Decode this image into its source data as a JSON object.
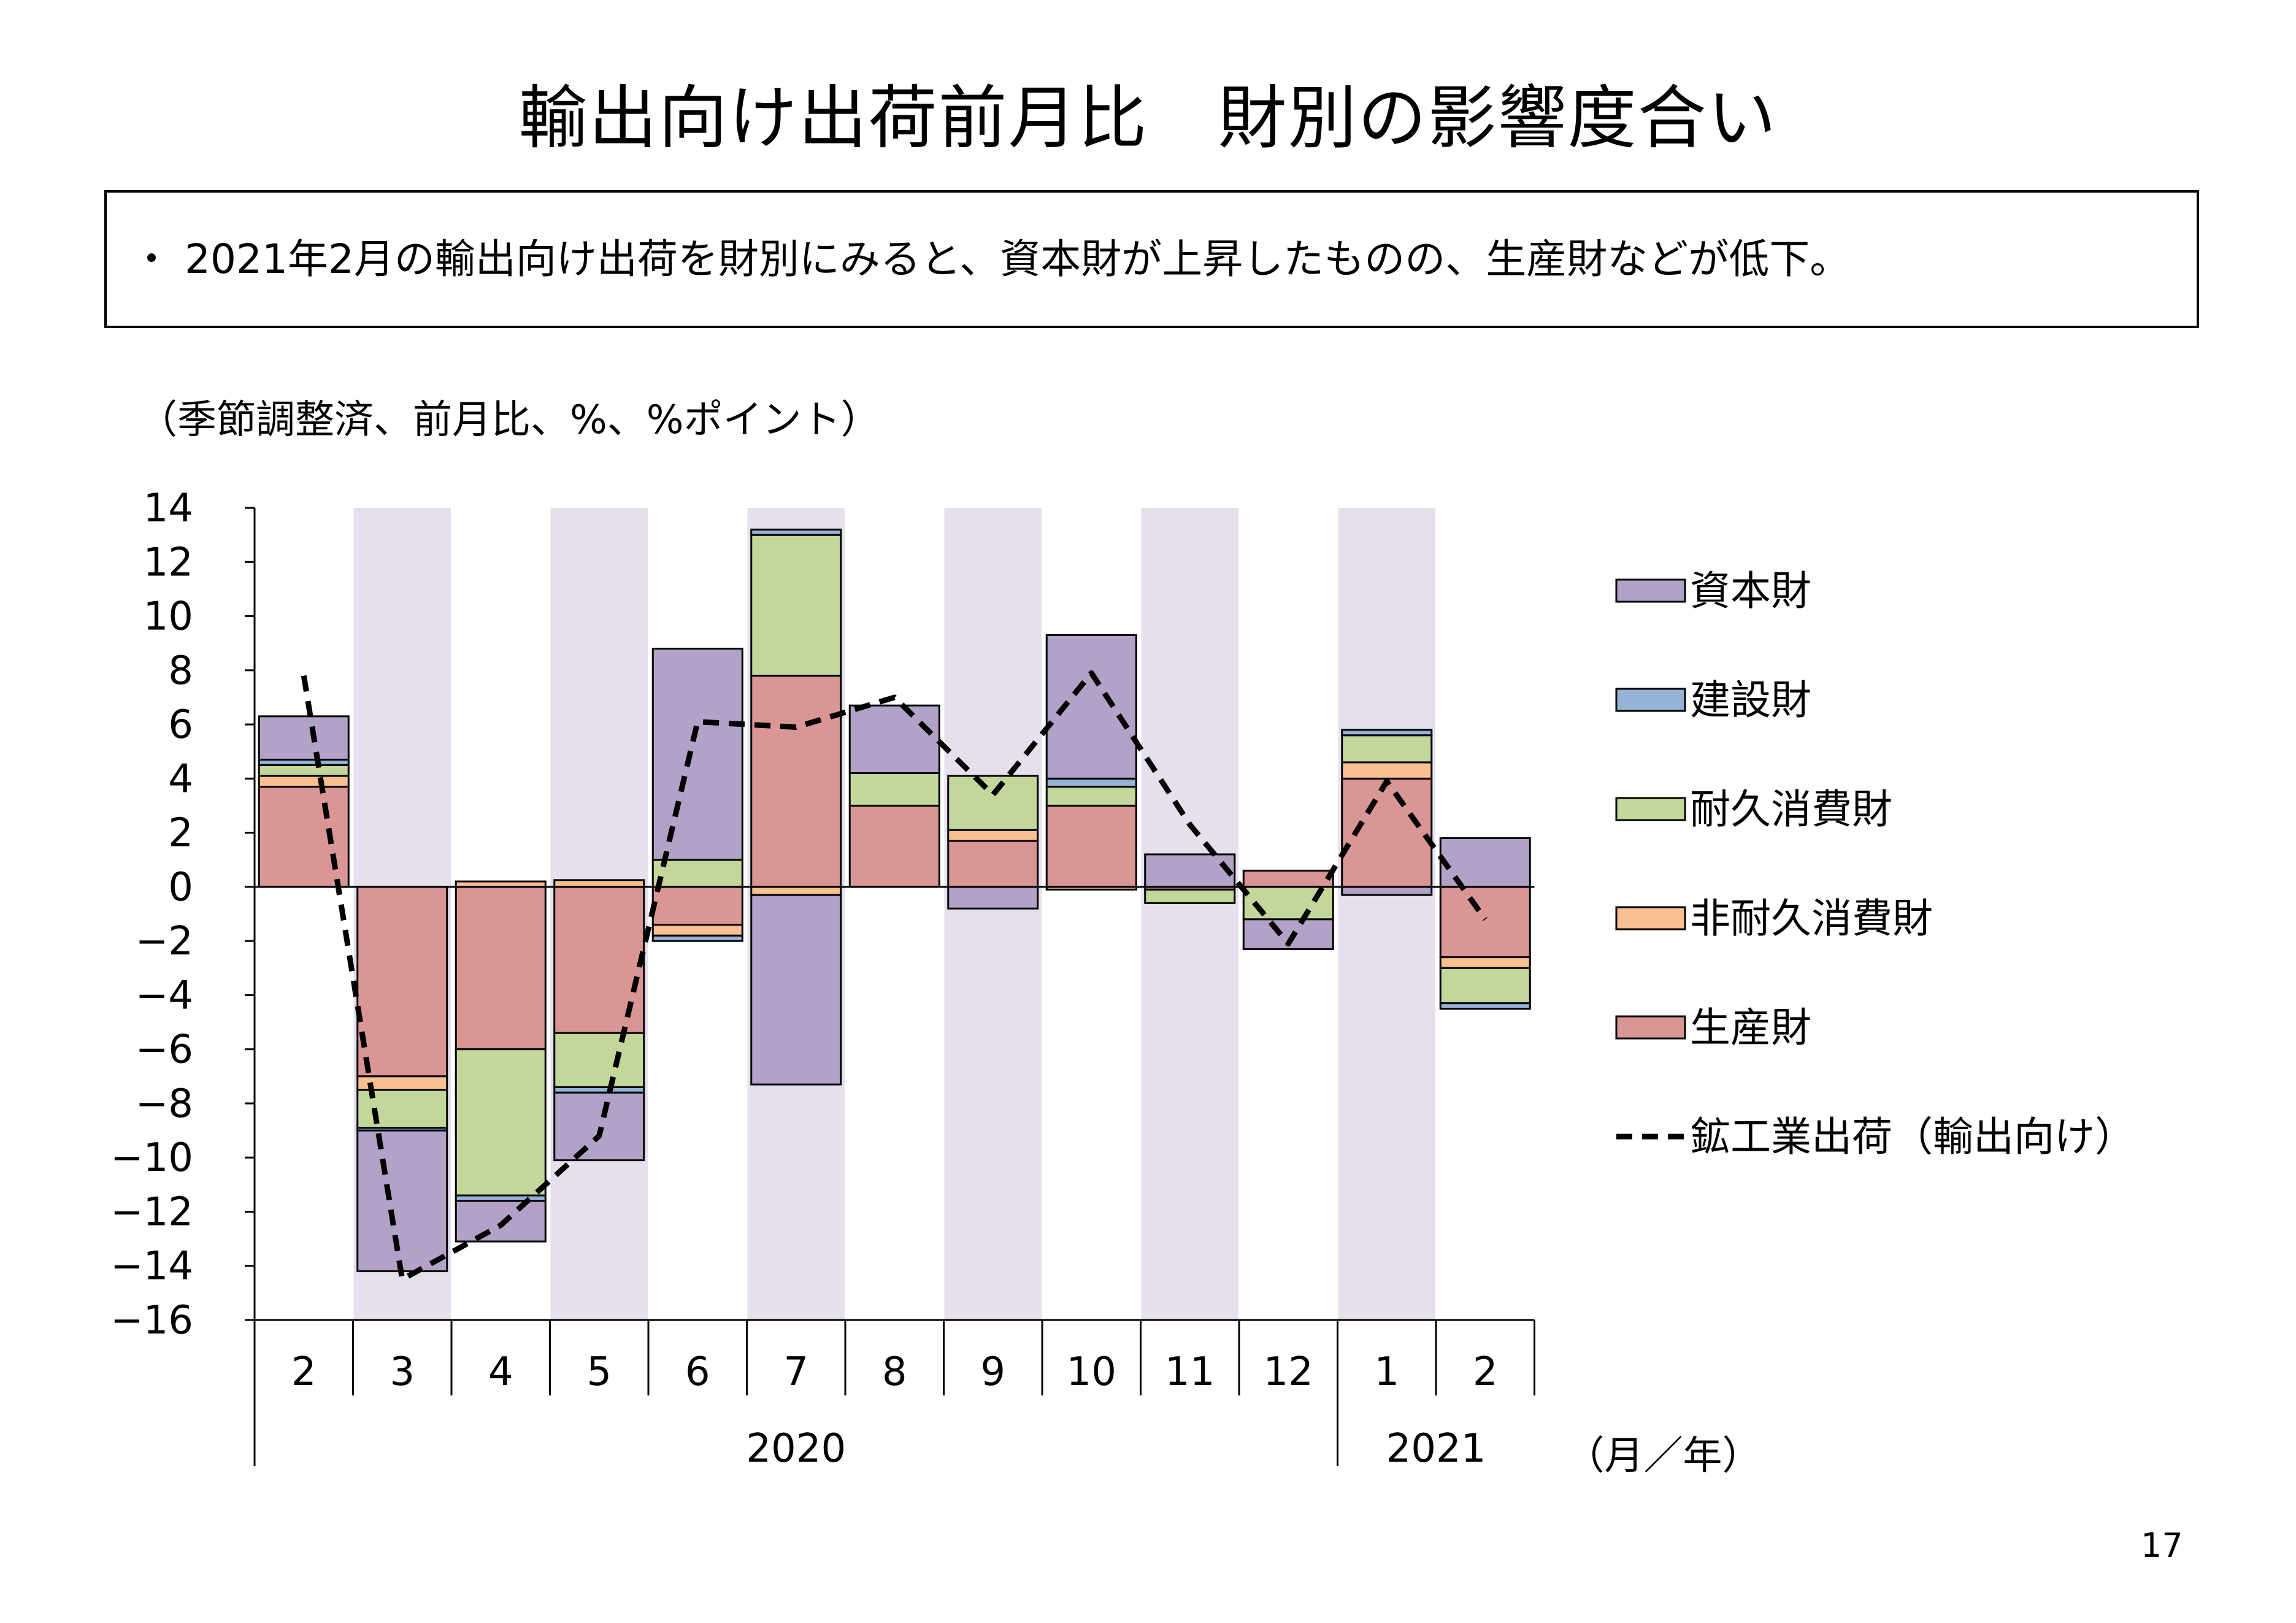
{
  "title": "輸出向け出荷前月比　財別の影響度合い",
  "summary": "・ 2021年2月の輸出向け出荷を財別にみると、資本財が上昇したものの、生産財などが低下。",
  "unit_note": "（季節調整済、前月比、%、%ポイント）",
  "page_number": "17",
  "colors": {
    "capital": "#b3a2c7",
    "construction": "#95b3d7",
    "durable": "#c4d79b",
    "nondurable": "#fac090",
    "production": "#d99694",
    "line": "#000000",
    "shade": "#e6e0ec"
  },
  "chart_data": {
    "type": "bar",
    "stacked": true,
    "categories": [
      "2",
      "3",
      "4",
      "5",
      "6",
      "7",
      "8",
      "9",
      "10",
      "11",
      "12",
      "1",
      "2"
    ],
    "year_labels": [
      {
        "label": "2020",
        "from": 0,
        "to": 10
      },
      {
        "label": "2021",
        "from": 11,
        "to": 12
      }
    ],
    "x_unit": "（月／年）",
    "ylim": [
      -16,
      14
    ],
    "yticks": [
      14,
      12,
      10,
      8,
      6,
      4,
      2,
      0,
      -2,
      -4,
      -6,
      -8,
      -10,
      -12,
      -14,
      -16
    ],
    "shaded_categories": [
      1,
      3,
      5,
      7,
      9,
      11
    ],
    "series": [
      {
        "name": "生産財",
        "key": "production",
        "values": [
          3.7,
          -7.0,
          -6.0,
          -5.4,
          -1.4,
          7.8,
          3.0,
          1.7,
          3.0,
          -0.1,
          0.6,
          4.0,
          -2.6
        ]
      },
      {
        "name": "非耐久消費財",
        "key": "nondurable",
        "values": [
          0.4,
          -0.5,
          0.2,
          0.25,
          -0.4,
          -0.3,
          0.0,
          0.4,
          -0.1,
          0.0,
          0.0,
          0.6,
          -0.4
        ]
      },
      {
        "name": "耐久消費財",
        "key": "durable",
        "values": [
          0.4,
          -1.4,
          -5.4,
          -2.0,
          1.0,
          5.2,
          1.2,
          2.0,
          0.7,
          -0.5,
          -1.2,
          1.0,
          -1.3
        ]
      },
      {
        "name": "建設財",
        "key": "construction",
        "values": [
          0.2,
          -0.1,
          -0.2,
          -0.2,
          -0.2,
          0.2,
          0.0,
          0.0,
          0.3,
          0.0,
          0.0,
          0.2,
          -0.2
        ]
      },
      {
        "name": "資本財",
        "key": "capital",
        "values": [
          1.6,
          -5.2,
          -1.5,
          -2.5,
          7.8,
          -7.0,
          2.5,
          -0.8,
          5.3,
          1.2,
          -1.1,
          -0.3,
          1.8
        ]
      }
    ],
    "legend_order": [
      "capital",
      "construction",
      "durable",
      "nondurable",
      "production"
    ],
    "legend_labels": {
      "capital": "資本財",
      "construction": "建設財",
      "durable": "耐久消費財",
      "nondurable": "非耐久消費財",
      "production": "生産財"
    },
    "line": {
      "name": "鉱工業出荷（輸出向け）",
      "values": [
        7.8,
        -14.5,
        -12.5,
        -9.2,
        6.1,
        5.9,
        7.0,
        3.4,
        7.9,
        2.3,
        -2.1,
        3.9,
        -1.2
      ]
    },
    "legend_placement": "right",
    "grid": false
  }
}
